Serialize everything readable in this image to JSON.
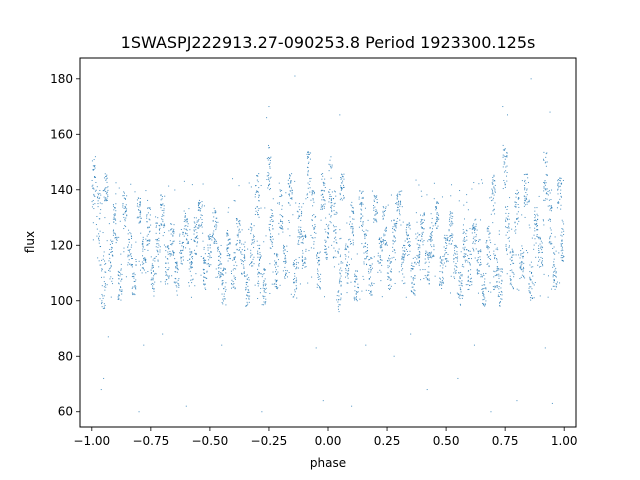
{
  "chart_data": {
    "type": "scatter",
    "title": "1SWASPJ222913.27-090253.8 Period 1923300.125s",
    "xlabel": "phase",
    "ylabel": "flux",
    "xlim": [
      -1.05,
      1.05
    ],
    "ylim": [
      54.5,
      187.5
    ],
    "xticks": [
      -1.0,
      -0.75,
      -0.5,
      -0.25,
      0.0,
      0.25,
      0.5,
      0.75,
      1.0
    ],
    "xtick_labels": [
      "−1.00",
      "−0.75",
      "−0.50",
      "−0.25",
      "0.00",
      "0.25",
      "0.50",
      "0.75",
      "1.00"
    ],
    "yticks": [
      60,
      80,
      100,
      120,
      140,
      160,
      180
    ],
    "ytick_labels": [
      "60",
      "80",
      "100",
      "120",
      "140",
      "160",
      "180"
    ],
    "grid": false,
    "series": [
      {
        "color": "#1f77b4",
        "phase_folded": true,
        "mirror_about_zero": true,
        "clusters": [
          {
            "x": 0.01,
            "y": [
              128,
              152
            ]
          },
          {
            "x": 0.03,
            "y": [
              112,
              140
            ]
          },
          {
            "x": 0.05,
            "y": [
              96,
              118
            ]
          },
          {
            "x": 0.06,
            "y": [
              136,
              146
            ]
          },
          {
            "x": 0.08,
            "y": [
              106,
              122
            ]
          },
          {
            "x": 0.1,
            "y": [
              120,
              136
            ]
          },
          {
            "x": 0.12,
            "y": [
              100,
              112
            ]
          },
          {
            "x": 0.14,
            "y": [
              126,
              140
            ]
          },
          {
            "x": 0.16,
            "y": [
              112,
              126
            ]
          },
          {
            "x": 0.18,
            "y": [
              102,
              116
            ]
          },
          {
            "x": 0.2,
            "y": [
              128,
              138
            ]
          },
          {
            "x": 0.22,
            "y": [
              110,
              124
            ]
          },
          {
            "x": 0.24,
            "y": [
              120,
              134
            ]
          },
          {
            "x": 0.26,
            "y": [
              104,
              116
            ]
          },
          {
            "x": 0.28,
            "y": [
              114,
              130
            ]
          },
          {
            "x": 0.3,
            "y": [
              126,
              140
            ]
          },
          {
            "x": 0.32,
            "y": [
              106,
              120
            ]
          },
          {
            "x": 0.34,
            "y": [
              116,
              128
            ]
          },
          {
            "x": 0.36,
            "y": [
              102,
              114
            ]
          },
          {
            "x": 0.38,
            "y": [
              112,
              126
            ]
          },
          {
            "x": 0.4,
            "y": [
              120,
              132
            ]
          },
          {
            "x": 0.42,
            "y": [
              106,
              118
            ]
          },
          {
            "x": 0.44,
            "y": [
              116,
              130
            ]
          },
          {
            "x": 0.46,
            "y": [
              126,
              136
            ]
          },
          {
            "x": 0.48,
            "y": [
              104,
              116
            ]
          },
          {
            "x": 0.5,
            "y": [
              112,
              124
            ]
          },
          {
            "x": 0.52,
            "y": [
              120,
              132
            ]
          },
          {
            "x": 0.54,
            "y": [
              108,
              120
            ]
          },
          {
            "x": 0.56,
            "y": [
              98,
              112
            ]
          },
          {
            "x": 0.58,
            "y": [
              114,
              126
            ]
          },
          {
            "x": 0.6,
            "y": [
              104,
              118
            ]
          },
          {
            "x": 0.62,
            "y": [
              118,
              130
            ]
          },
          {
            "x": 0.64,
            "y": [
              108,
              122
            ]
          },
          {
            "x": 0.66,
            "y": [
              98,
              110
            ]
          },
          {
            "x": 0.68,
            "y": [
              112,
              128
            ]
          },
          {
            "x": 0.7,
            "y": [
              130,
              146
            ]
          },
          {
            "x": 0.71,
            "y": [
              104,
              120
            ]
          },
          {
            "x": 0.73,
            "y": [
              98,
              112
            ]
          },
          {
            "x": 0.75,
            "y": [
              140,
              156
            ]
          },
          {
            "x": 0.76,
            "y": [
              118,
              134
            ]
          },
          {
            "x": 0.78,
            "y": [
              104,
              118
            ]
          },
          {
            "x": 0.8,
            "y": [
              124,
              140
            ]
          },
          {
            "x": 0.82,
            "y": [
              108,
              120
            ]
          },
          {
            "x": 0.84,
            "y": [
              134,
              146
            ]
          },
          {
            "x": 0.86,
            "y": [
              100,
              114
            ]
          },
          {
            "x": 0.88,
            "y": [
              120,
              134
            ]
          },
          {
            "x": 0.9,
            "y": [
              112,
              124
            ]
          },
          {
            "x": 0.92,
            "y": [
              136,
              154
            ]
          },
          {
            "x": 0.94,
            "y": [
              120,
              140
            ]
          },
          {
            "x": 0.96,
            "y": [
              104,
              118
            ]
          },
          {
            "x": 0.98,
            "y": [
              132,
              146
            ]
          },
          {
            "x": 0.995,
            "y": [
              114,
              130
            ]
          }
        ],
        "outliers": [
          {
            "x": -0.96,
            "y": 68
          },
          {
            "x": -0.95,
            "y": 72
          },
          {
            "x": -0.93,
            "y": 87
          },
          {
            "x": -0.8,
            "y": 60
          },
          {
            "x": -0.78,
            "y": 84
          },
          {
            "x": -0.6,
            "y": 62
          },
          {
            "x": -0.28,
            "y": 60
          },
          {
            "x": -0.26,
            "y": 166
          },
          {
            "x": -0.25,
            "y": 170
          },
          {
            "x": -0.14,
            "y": 181
          },
          {
            "x": -0.05,
            "y": 83
          },
          {
            "x": -0.02,
            "y": 64
          },
          {
            "x": 0.05,
            "y": 167
          },
          {
            "x": 0.1,
            "y": 62
          },
          {
            "x": 0.16,
            "y": 84
          },
          {
            "x": 0.28,
            "y": 80
          },
          {
            "x": 0.42,
            "y": 68
          },
          {
            "x": 0.55,
            "y": 72
          },
          {
            "x": 0.69,
            "y": 60
          },
          {
            "x": 0.74,
            "y": 170
          },
          {
            "x": 0.76,
            "y": 167
          },
          {
            "x": 0.8,
            "y": 64
          },
          {
            "x": 0.86,
            "y": 180
          },
          {
            "x": 0.92,
            "y": 83
          },
          {
            "x": 0.94,
            "y": 168
          },
          {
            "x": 0.95,
            "y": 63
          },
          {
            "x": -0.7,
            "y": 88
          },
          {
            "x": 0.35,
            "y": 88
          },
          {
            "x": -0.45,
            "y": 84
          },
          {
            "x": 0.62,
            "y": 84
          }
        ]
      }
    ]
  }
}
